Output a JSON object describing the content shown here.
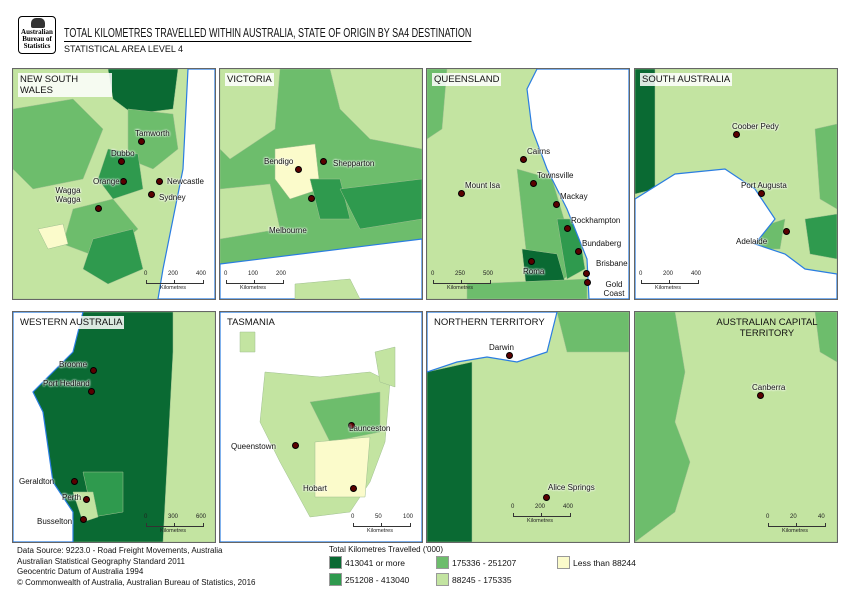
{
  "header": {
    "logo_text": "Australian Bureau of Statistics",
    "title": "TOTAL KILOMETRES TRAVELLED WITHIN AUSTRALIA, STATE OF ORIGIN BY SA4 DESTINATION",
    "subtitle": "STATISTICAL AREA LEVEL 4"
  },
  "colors": {
    "c1": "#0a6a33",
    "c2": "#2f9a4e",
    "c3": "#6dbd6c",
    "c4": "#c3e4a1",
    "c5": "#fbfbcb",
    "water": "#ffffff",
    "coast": "#2a7de1",
    "city": "#5a0000"
  },
  "panels": [
    {
      "title": "NEW SOUTH WALES",
      "cities": [
        "Tamworth",
        "Dubbo",
        "Orange",
        "Newcastle",
        "Sydney",
        "Wagga Wagga"
      ],
      "scale": [
        "0",
        "200",
        "400"
      ],
      "scale_unit": "Kilometres"
    },
    {
      "title": "VICTORIA",
      "cities": [
        "Bendigo",
        "Shepparton",
        "Melbourne"
      ],
      "scale": [
        "0",
        "100",
        "200"
      ],
      "scale_unit": "Kilometres"
    },
    {
      "title": "QUEENSLAND",
      "cities": [
        "Cairns",
        "Mount Isa",
        "Townsville",
        "Mackay",
        "Rockhampton",
        "Bundaberg",
        "Roma",
        "Brisbane",
        "Gold Coast"
      ],
      "scale": [
        "0",
        "250",
        "500"
      ],
      "scale_unit": "Kilometres"
    },
    {
      "title": "SOUTH AUSTRALIA",
      "cities": [
        "Coober Pedy",
        "Port Augusta",
        "Adelaide"
      ],
      "scale": [
        "0",
        "200",
        "400"
      ],
      "scale_unit": "Kilometres"
    },
    {
      "title": "WESTERN AUSTRALIA",
      "cities": [
        "Broome",
        "Port Hedland",
        "Geraldton",
        "Perth",
        "Busselton"
      ],
      "scale": [
        "0",
        "300",
        "600"
      ],
      "scale_unit": "Kilometres"
    },
    {
      "title": "TASMANIA",
      "cities": [
        "Launceston",
        "Queenstown",
        "Hobart"
      ],
      "scale": [
        "0",
        "50",
        "100"
      ],
      "scale_unit": "Kilometres"
    },
    {
      "title": "NORTHERN TERRITORY",
      "cities": [
        "Darwin",
        "Alice Springs"
      ],
      "scale": [
        "0",
        "200",
        "400"
      ],
      "scale_unit": "Kilometres"
    },
    {
      "title": "AUSTRALIAN CAPITAL TERRITORY",
      "cities": [
        "Canberra"
      ],
      "scale": [
        "0",
        "20",
        "40"
      ],
      "scale_unit": "Kilometres"
    }
  ],
  "footer": [
    "Data Source: 9223.0 - Road Freight Movements, Australia",
    "Australian Statistical Geography Standard 2011",
    "Geocentric Datum of Australia 1994",
    "© Commonwealth of Australia, Australian Bureau of Statistics, 2016"
  ],
  "legend": {
    "title": "Total Kilometres Travelled ('000)",
    "items": [
      {
        "label": "413041 or more",
        "color": "#0a6a33"
      },
      {
        "label": "251208 - 413040",
        "color": "#2f9a4e"
      },
      {
        "label": "175336 - 251207",
        "color": "#6dbd6c"
      },
      {
        "label": "88245 - 175335",
        "color": "#c3e4a1"
      },
      {
        "label": "Less than 88244",
        "color": "#fbfbcb"
      }
    ]
  }
}
